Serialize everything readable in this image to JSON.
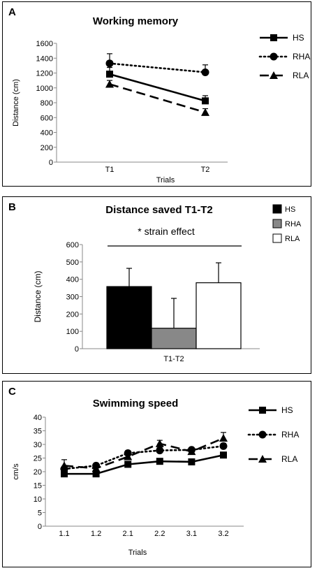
{
  "chart_data": [
    {
      "panel": "A",
      "type": "line",
      "title": "Working memory",
      "xlabel": "Trials",
      "ylabel": "Distance (cm)",
      "categories": [
        "T1",
        "T2"
      ],
      "ylim": [
        0,
        1600
      ],
      "yticks": [
        0,
        200,
        400,
        600,
        800,
        1000,
        1200,
        1400,
        1600
      ],
      "legend_position": "right",
      "series": [
        {
          "name": "HS",
          "values": [
            1185,
            825
          ],
          "errors": [
            90,
            70
          ],
          "line": "solid",
          "marker": "square",
          "color": "#000000"
        },
        {
          "name": "RHA",
          "values": [
            1330,
            1210
          ],
          "errors": [
            130,
            100
          ],
          "line": "dotted",
          "marker": "circle",
          "color": "#000000"
        },
        {
          "name": "RLA",
          "values": [
            1050,
            670
          ],
          "errors": [
            50,
            50
          ],
          "line": "dashed",
          "marker": "triangle",
          "color": "#000000"
        }
      ]
    },
    {
      "panel": "B",
      "type": "bar",
      "title": "Distance saved T1-T2",
      "annotation": "*  strain effect",
      "ylabel": "Distance (cm)",
      "categories": [
        "T1-T2"
      ],
      "ylim": [
        0,
        600
      ],
      "yticks": [
        0,
        100,
        200,
        300,
        400,
        500,
        600
      ],
      "legend_position": "top-right",
      "series": [
        {
          "name": "HS",
          "values": [
            358
          ],
          "errors": [
            105
          ],
          "color": "#000000"
        },
        {
          "name": "RHA",
          "values": [
            118
          ],
          "errors": [
            172
          ],
          "color": "#888888"
        },
        {
          "name": "RLA",
          "values": [
            380
          ],
          "errors": [
            115
          ],
          "color": "#ffffff"
        }
      ]
    },
    {
      "panel": "C",
      "type": "line",
      "title": "Swimming speed",
      "xlabel": "Trials",
      "ylabel": "cm/s",
      "categories": [
        "1.1",
        "1.2",
        "2.1",
        "2.2",
        "3.1",
        "3.2"
      ],
      "ylim": [
        0,
        40
      ],
      "yticks": [
        0,
        5,
        10,
        15,
        20,
        25,
        30,
        35,
        40
      ],
      "legend_position": "right",
      "series": [
        {
          "name": "HS",
          "values": [
            19.2,
            19.2,
            22.7,
            23.8,
            23.6,
            26.1
          ],
          "errors": [
            0.8,
            0.7,
            0.8,
            0.8,
            0.8,
            0.8
          ],
          "line": "solid",
          "marker": "square",
          "color": "#000000"
        },
        {
          "name": "RHA",
          "values": [
            21.0,
            22.2,
            26.8,
            27.8,
            28.0,
            29.4
          ],
          "errors": [
            1.0,
            0.8,
            0.9,
            1.0,
            0.8,
            1.0
          ],
          "line": "dotted",
          "marker": "circle",
          "color": "#000000"
        },
        {
          "name": "RLA",
          "values": [
            22.2,
            21.2,
            25.5,
            30.3,
            27.4,
            32.3
          ],
          "errors": [
            2.2,
            0.8,
            1.0,
            1.2,
            0.9,
            2.1
          ],
          "line": "dashed",
          "marker": "triangle",
          "color": "#000000"
        }
      ]
    }
  ]
}
